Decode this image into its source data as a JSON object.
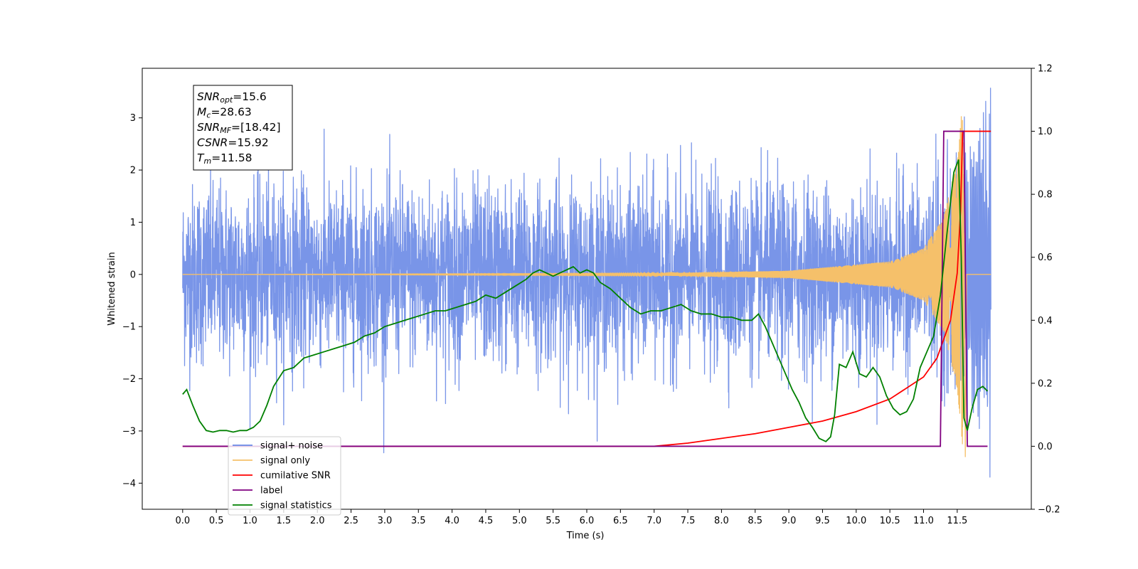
{
  "chart_data": {
    "type": "line",
    "xlabel": "Time (s)",
    "ylabel": "Whitened strain",
    "xlim": [
      -0.6,
      12.6
    ],
    "ylim": [
      -4.5,
      3.95
    ],
    "y2lim": [
      -0.2,
      1.2
    ],
    "xticks": [
      "0.0",
      "0.5",
      "1.0",
      "1.5",
      "2.0",
      "2.5",
      "3.0",
      "3.5",
      "4.0",
      "4.5",
      "5.0",
      "5.5",
      "6.0",
      "6.5",
      "7.0",
      "7.5",
      "8.0",
      "8.5",
      "9.0",
      "9.5",
      "10.0",
      "10.5",
      "11.0",
      "11.5"
    ],
    "yticks": [
      "−4",
      "−3",
      "−2",
      "−1",
      "0",
      "1",
      "2",
      "3"
    ],
    "y2ticks": [
      "−0.2",
      "0.0",
      "0.2",
      "0.4",
      "0.6",
      "0.8",
      "1.0",
      "1.2"
    ],
    "grid": false,
    "legend_position": "lower-left",
    "annotation": {
      "lines": [
        {
          "base": "SNR",
          "sub": "opt",
          "value": "=15.6"
        },
        {
          "base": "M",
          "sub": "c",
          "value": "=28.63"
        },
        {
          "base": "SNR",
          "sub": "MF",
          "value": "=[18.42]"
        },
        {
          "base": "CSNR",
          "sub": "",
          "value": "=15.92"
        },
        {
          "base": "T",
          "sub": "m",
          "value": "=11.58"
        }
      ]
    },
    "legend": [
      {
        "label": "signal+ noise",
        "color": "#6a8ae6"
      },
      {
        "label": "signal only",
        "color": "#f5c06a"
      },
      {
        "label": "cumilative SNR",
        "color": "#ff0000"
      },
      {
        "label": "label",
        "color": "#800080"
      },
      {
        "label": "signal statistics",
        "color": "#008000"
      }
    ],
    "series": [
      {
        "name": "signal+ noise",
        "axis": "left",
        "color": "#6a8ae6",
        "x_range": [
          0.0,
          12.0
        ],
        "noise_std": 0.85,
        "y_extremes": [
          -4.1,
          3.57
        ]
      },
      {
        "name": "signal only",
        "axis": "left",
        "color": "#f5c06a",
        "x_range": [
          0.0,
          11.6
        ],
        "amplitude_envelope": [
          [
            0,
            0.0
          ],
          [
            7.0,
            0.02
          ],
          [
            9.0,
            0.07
          ],
          [
            10.5,
            0.25
          ],
          [
            11.0,
            0.5
          ],
          [
            11.3,
            1.1
          ],
          [
            11.5,
            2.2
          ],
          [
            11.58,
            3.3
          ]
        ],
        "y_extremes": [
          -3.5,
          3.3
        ]
      },
      {
        "name": "cumilative SNR",
        "axis": "right",
        "color": "#ff0000",
        "x": [
          0.0,
          7.0,
          7.5,
          8.0,
          8.5,
          9.0,
          9.5,
          10.0,
          10.5,
          11.0,
          11.2,
          11.4,
          11.5,
          11.55,
          11.58,
          12.0
        ],
        "y": [
          0.0,
          0.0,
          0.01,
          0.025,
          0.04,
          0.06,
          0.08,
          0.11,
          0.15,
          0.22,
          0.28,
          0.4,
          0.55,
          0.75,
          1.0,
          1.0
        ]
      },
      {
        "name": "label",
        "axis": "right",
        "color": "#800080",
        "x": [
          0.0,
          11.25,
          11.3,
          11.6,
          11.65,
          11.95
        ],
        "y": [
          0.0,
          0.0,
          1.0,
          1.0,
          0.0,
          0.0
        ]
      },
      {
        "name": "signal statistics",
        "axis": "right",
        "color": "#008000",
        "x": [
          0.0,
          0.06,
          0.15,
          0.25,
          0.35,
          0.45,
          0.55,
          0.65,
          0.75,
          0.85,
          0.95,
          1.05,
          1.15,
          1.25,
          1.35,
          1.5,
          1.65,
          1.8,
          1.95,
          2.1,
          2.25,
          2.4,
          2.55,
          2.7,
          2.85,
          3.0,
          3.15,
          3.3,
          3.45,
          3.6,
          3.75,
          3.9,
          4.05,
          4.2,
          4.35,
          4.5,
          4.65,
          4.8,
          4.95,
          5.1,
          5.2,
          5.3,
          5.4,
          5.5,
          5.6,
          5.7,
          5.8,
          5.9,
          6.0,
          6.1,
          6.2,
          6.35,
          6.5,
          6.65,
          6.8,
          6.95,
          7.1,
          7.25,
          7.4,
          7.55,
          7.7,
          7.85,
          8.0,
          8.15,
          8.3,
          8.45,
          8.55,
          8.65,
          8.75,
          8.85,
          8.95,
          9.05,
          9.15,
          9.25,
          9.35,
          9.45,
          9.55,
          9.62,
          9.68,
          9.75,
          9.85,
          9.95,
          10.05,
          10.15,
          10.25,
          10.35,
          10.45,
          10.55,
          10.65,
          10.75,
          10.85,
          10.95,
          11.05,
          11.15,
          11.25,
          11.35,
          11.45,
          11.52,
          11.56,
          11.6,
          11.65,
          11.72,
          11.8,
          11.88,
          11.95
        ],
        "y": [
          0.165,
          0.18,
          0.13,
          0.08,
          0.05,
          0.045,
          0.05,
          0.05,
          0.045,
          0.05,
          0.05,
          0.06,
          0.08,
          0.13,
          0.19,
          0.24,
          0.25,
          0.28,
          0.29,
          0.3,
          0.31,
          0.32,
          0.33,
          0.35,
          0.36,
          0.38,
          0.39,
          0.4,
          0.41,
          0.42,
          0.43,
          0.43,
          0.44,
          0.45,
          0.46,
          0.48,
          0.47,
          0.49,
          0.51,
          0.53,
          0.55,
          0.56,
          0.55,
          0.54,
          0.55,
          0.56,
          0.57,
          0.55,
          0.56,
          0.55,
          0.52,
          0.5,
          0.47,
          0.44,
          0.42,
          0.43,
          0.43,
          0.44,
          0.45,
          0.43,
          0.42,
          0.42,
          0.41,
          0.41,
          0.4,
          0.4,
          0.42,
          0.38,
          0.33,
          0.28,
          0.23,
          0.18,
          0.14,
          0.09,
          0.06,
          0.025,
          0.015,
          0.03,
          0.1,
          0.26,
          0.25,
          0.3,
          0.23,
          0.22,
          0.25,
          0.22,
          0.16,
          0.12,
          0.1,
          0.11,
          0.15,
          0.25,
          0.3,
          0.35,
          0.48,
          0.68,
          0.87,
          0.91,
          0.6,
          0.09,
          0.05,
          0.12,
          0.18,
          0.19,
          0.175
        ]
      }
    ]
  }
}
